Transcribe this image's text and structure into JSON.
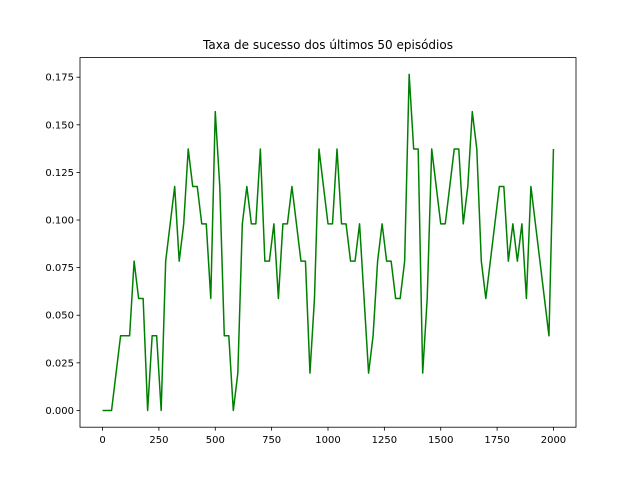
{
  "chart_data": {
    "type": "line",
    "title": "Taxa de sucesso dos últimos 50 episódios",
    "x": [
      0,
      20,
      40,
      60,
      80,
      100,
      120,
      140,
      160,
      180,
      200,
      220,
      240,
      260,
      280,
      300,
      320,
      340,
      360,
      380,
      400,
      420,
      440,
      460,
      480,
      500,
      520,
      540,
      560,
      580,
      600,
      620,
      640,
      660,
      680,
      700,
      720,
      740,
      760,
      780,
      800,
      820,
      840,
      860,
      880,
      900,
      920,
      940,
      960,
      980,
      1000,
      1020,
      1040,
      1060,
      1080,
      1100,
      1120,
      1140,
      1160,
      1180,
      1200,
      1220,
      1240,
      1260,
      1280,
      1300,
      1320,
      1340,
      1360,
      1380,
      1400,
      1420,
      1440,
      1460,
      1480,
      1500,
      1520,
      1540,
      1560,
      1580,
      1600,
      1620,
      1640,
      1660,
      1680,
      1700,
      1720,
      1740,
      1760,
      1780,
      1800,
      1820,
      1840,
      1860,
      1880,
      1900,
      1920,
      1940,
      1960,
      1980,
      2000
    ],
    "series": [
      {
        "color": "#008000",
        "values": [
          0,
          0,
          0,
          0.0196,
          0.0392,
          0.0392,
          0.0392,
          0.0784,
          0.0588,
          0.0588,
          0,
          0.0392,
          0.0392,
          0,
          0.0784,
          0.098,
          0.1176,
          0.0784,
          0.098,
          0.1373,
          0.1176,
          0.1176,
          0.098,
          0.098,
          0.0588,
          0.1569,
          0.1176,
          0.0392,
          0.0392,
          0,
          0.0196,
          0.098,
          0.1176,
          0.098,
          0.098,
          0.1373,
          0.0784,
          0.0784,
          0.098,
          0.0588,
          0.098,
          0.098,
          0.1176,
          0.098,
          0.0784,
          0.0784,
          0.0196,
          0.0588,
          0.1373,
          0.1176,
          0.098,
          0.098,
          0.1373,
          0.098,
          0.098,
          0.0784,
          0.0784,
          0.098,
          0.0588,
          0.0196,
          0.0392,
          0.0784,
          0.098,
          0.0784,
          0.0784,
          0.0588,
          0.0588,
          0.0784,
          0.1765,
          0.1373,
          0.1373,
          0.0196,
          0.0588,
          0.1373,
          0.1176,
          0.098,
          0.098,
          0.1176,
          0.1373,
          0.1373,
          0.098,
          0.1176,
          0.1569,
          0.1373,
          0.0784,
          0.0588,
          0.0784,
          0.098,
          0.1176,
          0.1176,
          0.0784,
          0.098,
          0.0784,
          0.098,
          0.0588,
          0.1176,
          0.098,
          0.0784,
          0.0588,
          0.0392,
          0.1373
        ]
      }
    ],
    "xlim": [
      -100,
      2100
    ],
    "xticks": [
      0,
      250,
      500,
      750,
      1000,
      1250,
      1500,
      1750,
      2000
    ],
    "ylim": [
      -0.0088,
      0.1853
    ],
    "yticks": [
      {
        "value": 0,
        "label": "0.000"
      },
      {
        "value": 0.025,
        "label": "0.025"
      },
      {
        "value": 0.05,
        "label": "0.050"
      },
      {
        "value": 0.075,
        "label": "0.075"
      },
      {
        "value": 0.1,
        "label": "0.100"
      },
      {
        "value": 0.125,
        "label": "0.125"
      },
      {
        "value": 0.15,
        "label": "0.150"
      },
      {
        "value": 0.175,
        "label": "0.175"
      }
    ],
    "grid": false
  }
}
